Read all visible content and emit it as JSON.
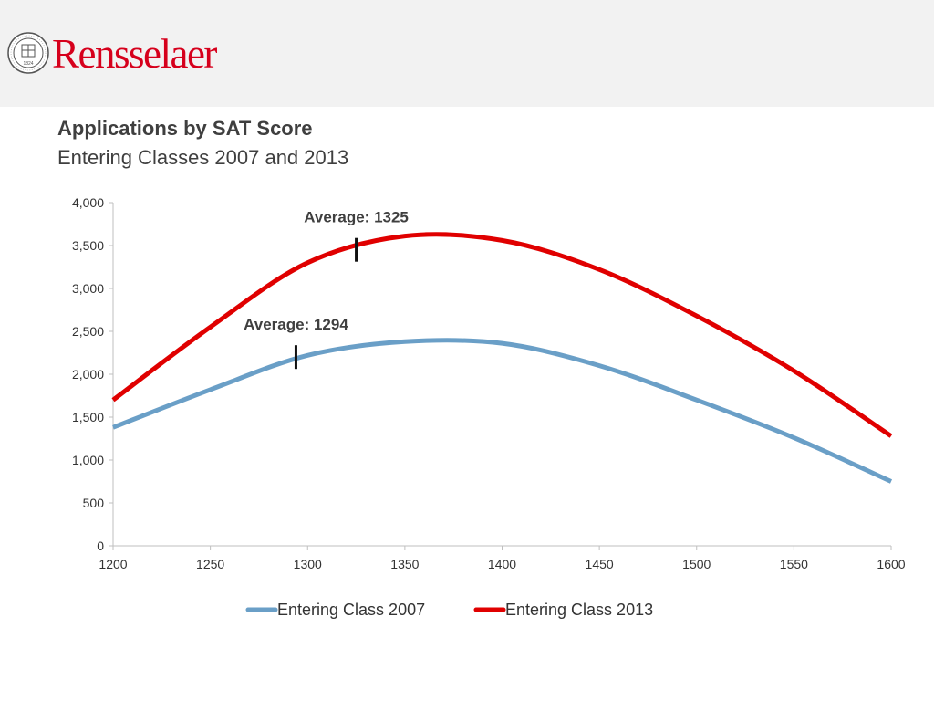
{
  "header": {
    "brand_name": "Rensselaer",
    "seal_text": "1824",
    "brand_color": "#d6001c",
    "background": "#f2f2f2"
  },
  "slide": {
    "title": "Applications by SAT Score",
    "subtitle": "Entering Classes 2007 and 2013"
  },
  "chart_data": {
    "type": "line",
    "title": "Applications by SAT Score",
    "subtitle": "Entering Classes 2007 and 2013",
    "xlabel": "",
    "ylabel": "",
    "xlim": [
      1200,
      1600
    ],
    "ylim": [
      0,
      4000
    ],
    "x_ticks": [
      1200,
      1250,
      1300,
      1350,
      1400,
      1450,
      1500,
      1550,
      1600
    ],
    "y_ticks": [
      0,
      500,
      1000,
      1500,
      2000,
      2500,
      3000,
      3500,
      4000
    ],
    "y_tick_labels": [
      "0",
      "500",
      "1,000",
      "1,500",
      "2,000",
      "2,500",
      "3,000",
      "3,500",
      "4,000"
    ],
    "grid": false,
    "legend_position": "bottom",
    "series": [
      {
        "name": "Entering Class 2007",
        "color": "#6a9fc7",
        "x": [
          1200,
          1250,
          1300,
          1350,
          1400,
          1450,
          1500,
          1550,
          1600
        ],
        "y": [
          1380,
          1820,
          2220,
          2380,
          2360,
          2100,
          1700,
          1260,
          750
        ]
      },
      {
        "name": "Entering Class 2013",
        "color": "#e00000",
        "x": [
          1200,
          1250,
          1300,
          1350,
          1400,
          1450,
          1500,
          1550,
          1600
        ],
        "y": [
          1700,
          2550,
          3300,
          3610,
          3560,
          3220,
          2680,
          2040,
          1280
        ]
      }
    ],
    "annotations": [
      {
        "text": "Average: 1325",
        "x": 1325,
        "series": "Entering Class 2013",
        "y": 3450
      },
      {
        "text": "Average: 1294",
        "x": 1294,
        "series": "Entering Class 2007",
        "y": 2200
      }
    ]
  }
}
